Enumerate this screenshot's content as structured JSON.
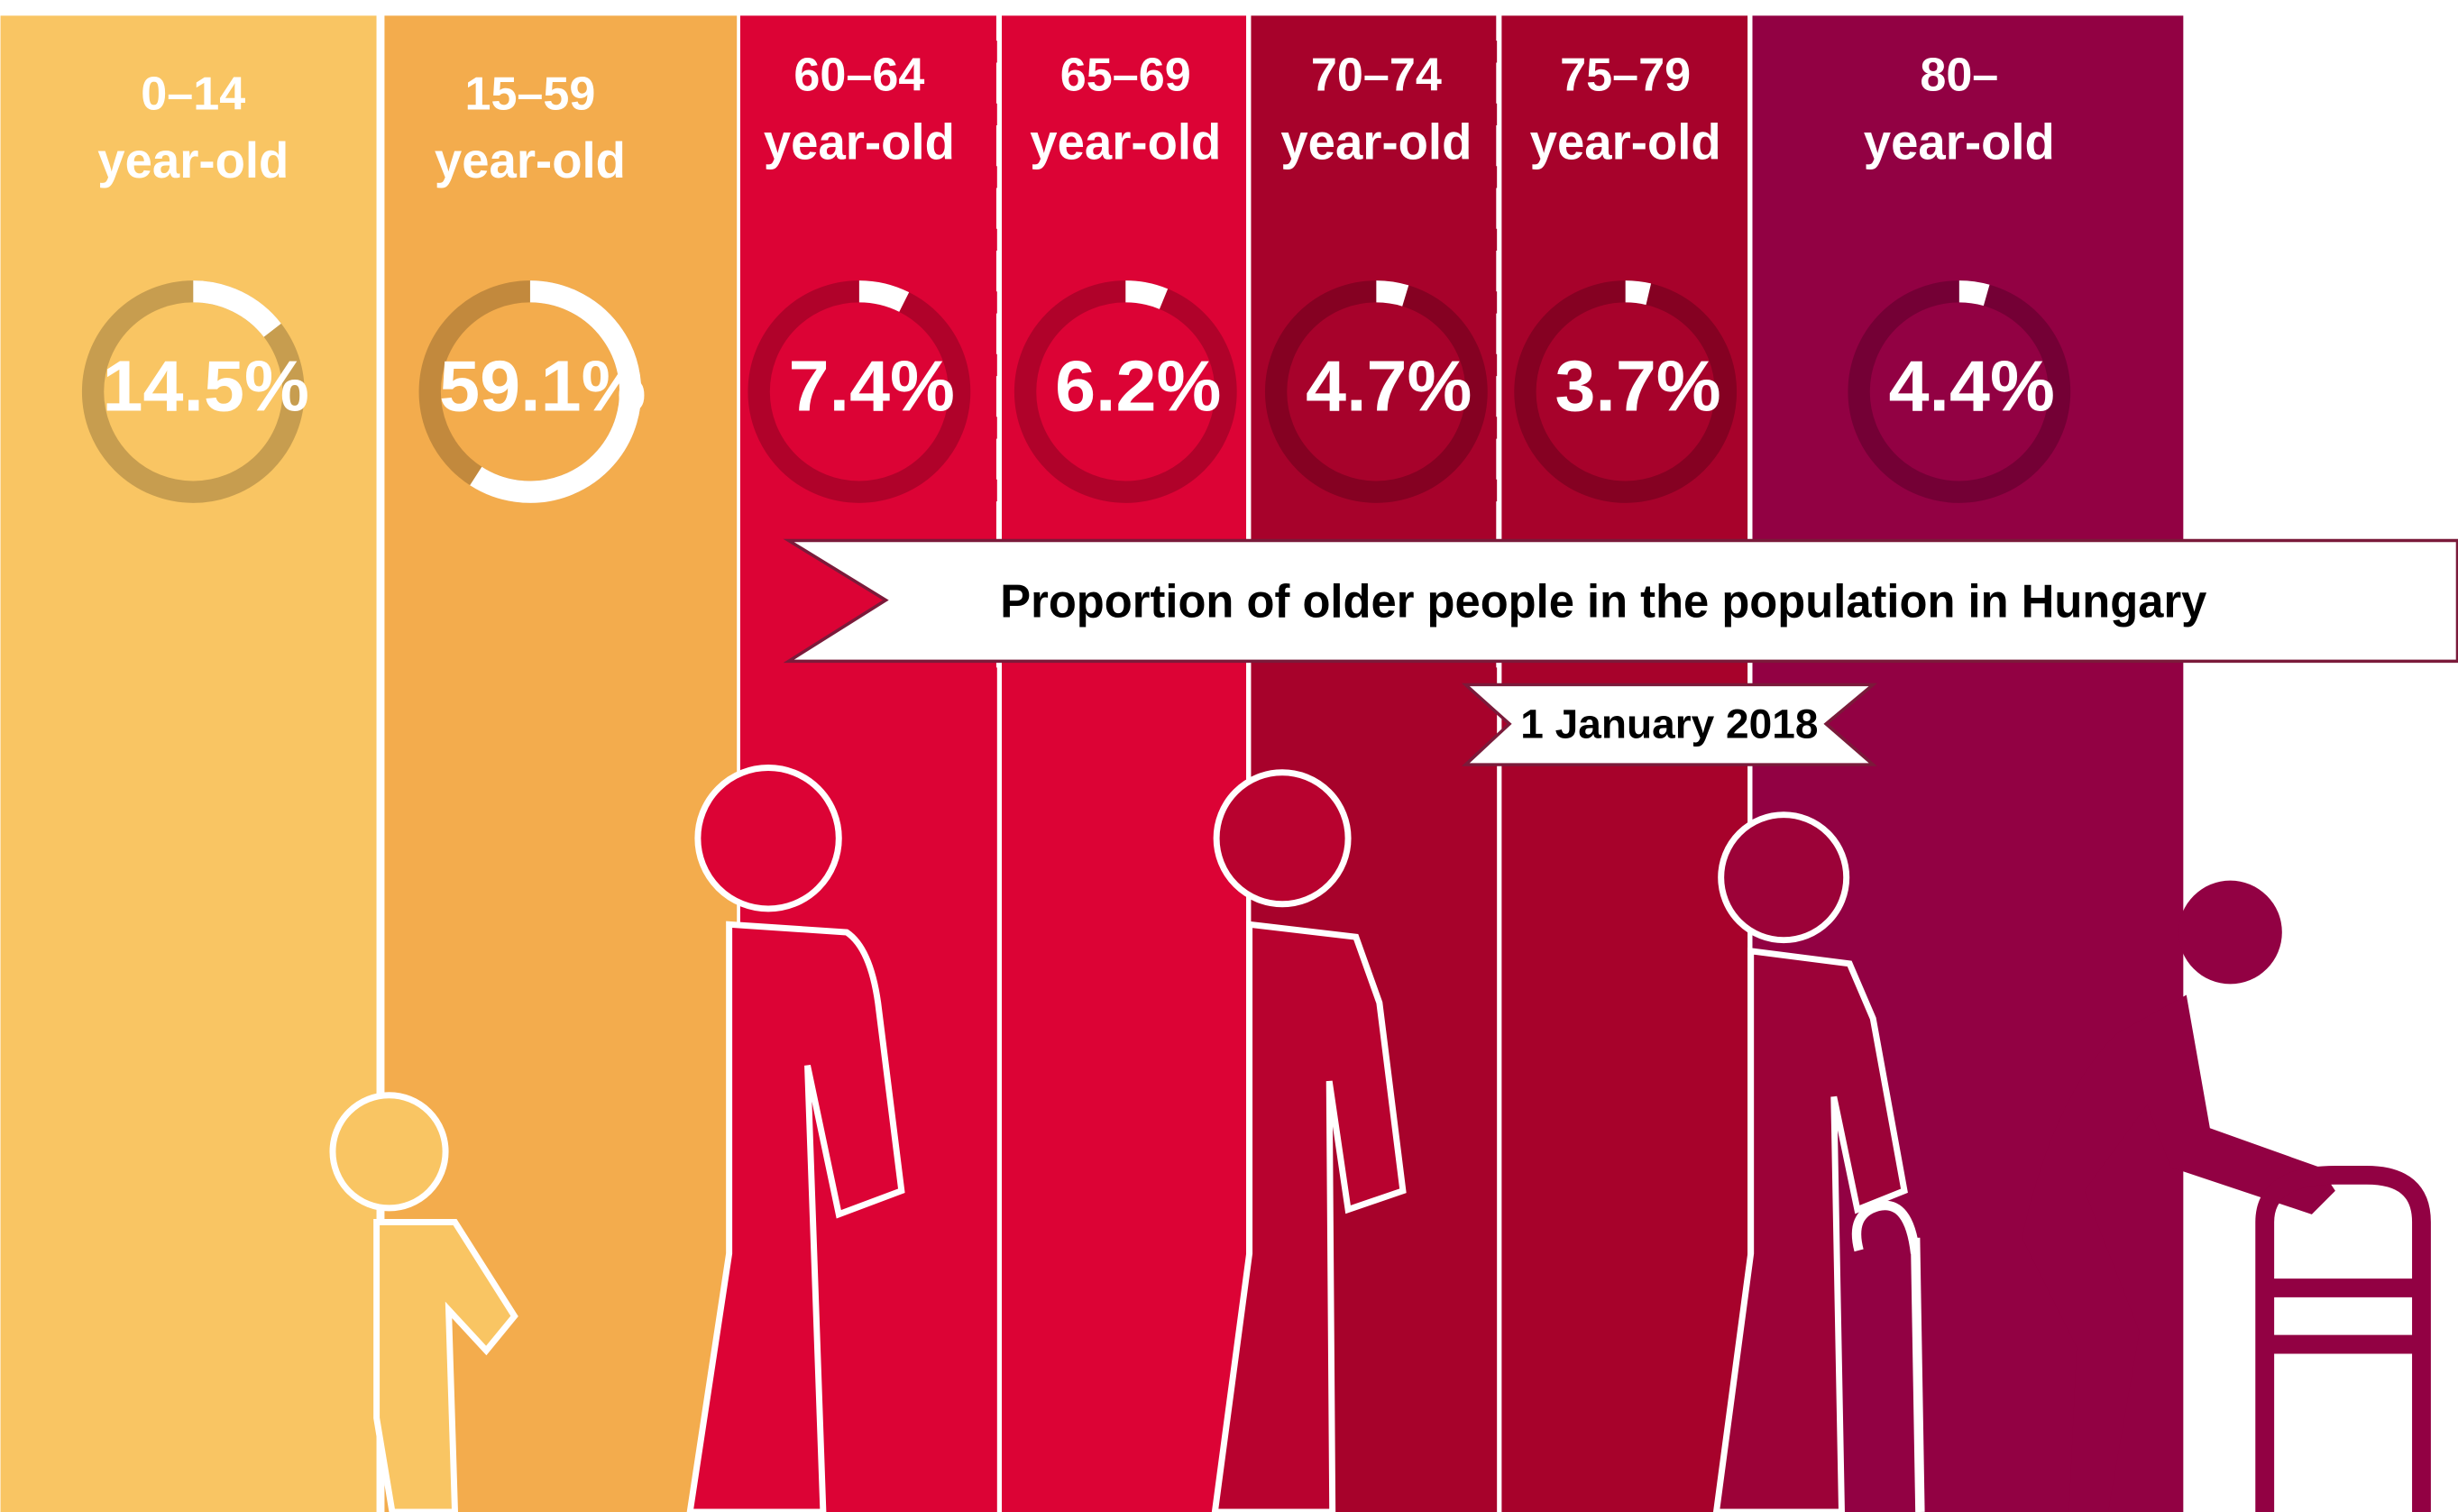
{
  "chart_data": {
    "type": "donut",
    "title": "Proportion of older people in the population in Hungary",
    "subtitle": "1 January 2018",
    "categories": [
      "0–14",
      "15–59",
      "60–64",
      "65–69",
      "70–74",
      "75–79",
      "80–"
    ],
    "category_unit": "year-old",
    "values": [
      14.5,
      59.1,
      7.4,
      6.2,
      4.7,
      3.7,
      4.4
    ],
    "value_labels": [
      "14.5%",
      "59.1%",
      "7.4%",
      "6.2%",
      "4.7%",
      "3.7%",
      "4.4%"
    ],
    "colors": [
      "#f9c563",
      "#f3ac4d",
      "#dc0335",
      "#dc0335",
      "#a7022b",
      "#a7022b",
      "#920143"
    ]
  }
}
